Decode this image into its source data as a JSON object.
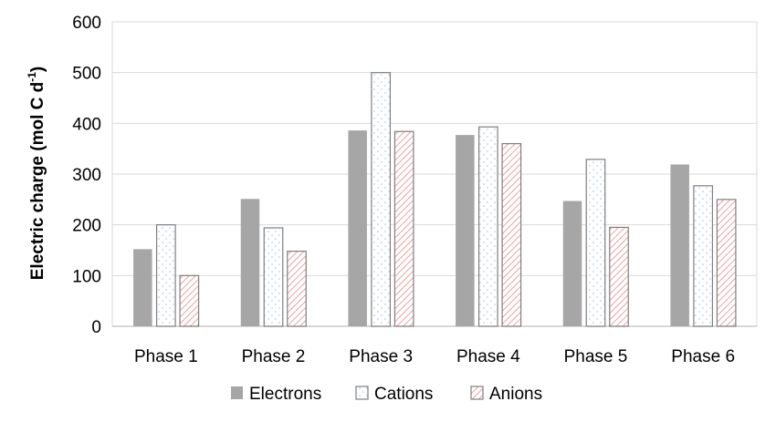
{
  "chart_data": {
    "type": "bar",
    "title": "",
    "xlabel": "",
    "ylabel": "Electric charge (mol C d",
    "ylabel_superscript": "-1",
    "ylabel_close": ")",
    "categories": [
      "Phase 1",
      "Phase 2",
      "Phase 3",
      "Phase 4",
      "Phase 5",
      "Phase 6"
    ],
    "series": [
      {
        "name": "Electrons",
        "values": [
          152,
          251,
          386,
          377,
          247,
          319
        ],
        "color": "#a6a6a6",
        "pattern": "solid"
      },
      {
        "name": "Cations",
        "values": [
          200,
          194,
          500,
          393,
          329,
          277
        ],
        "color": "#ffffff",
        "pattern": "dots",
        "pattern_color": "#9dc3e6"
      },
      {
        "name": "Anions",
        "values": [
          100,
          148,
          384,
          360,
          195,
          250
        ],
        "color": "#ffffff",
        "pattern": "diagonal-hatch",
        "pattern_color": "#e88a8a"
      }
    ],
    "ylim": [
      0,
      600
    ],
    "yticks": [
      0,
      100,
      200,
      300,
      400,
      500,
      600
    ],
    "grid": true,
    "legend_position": "bottom"
  }
}
